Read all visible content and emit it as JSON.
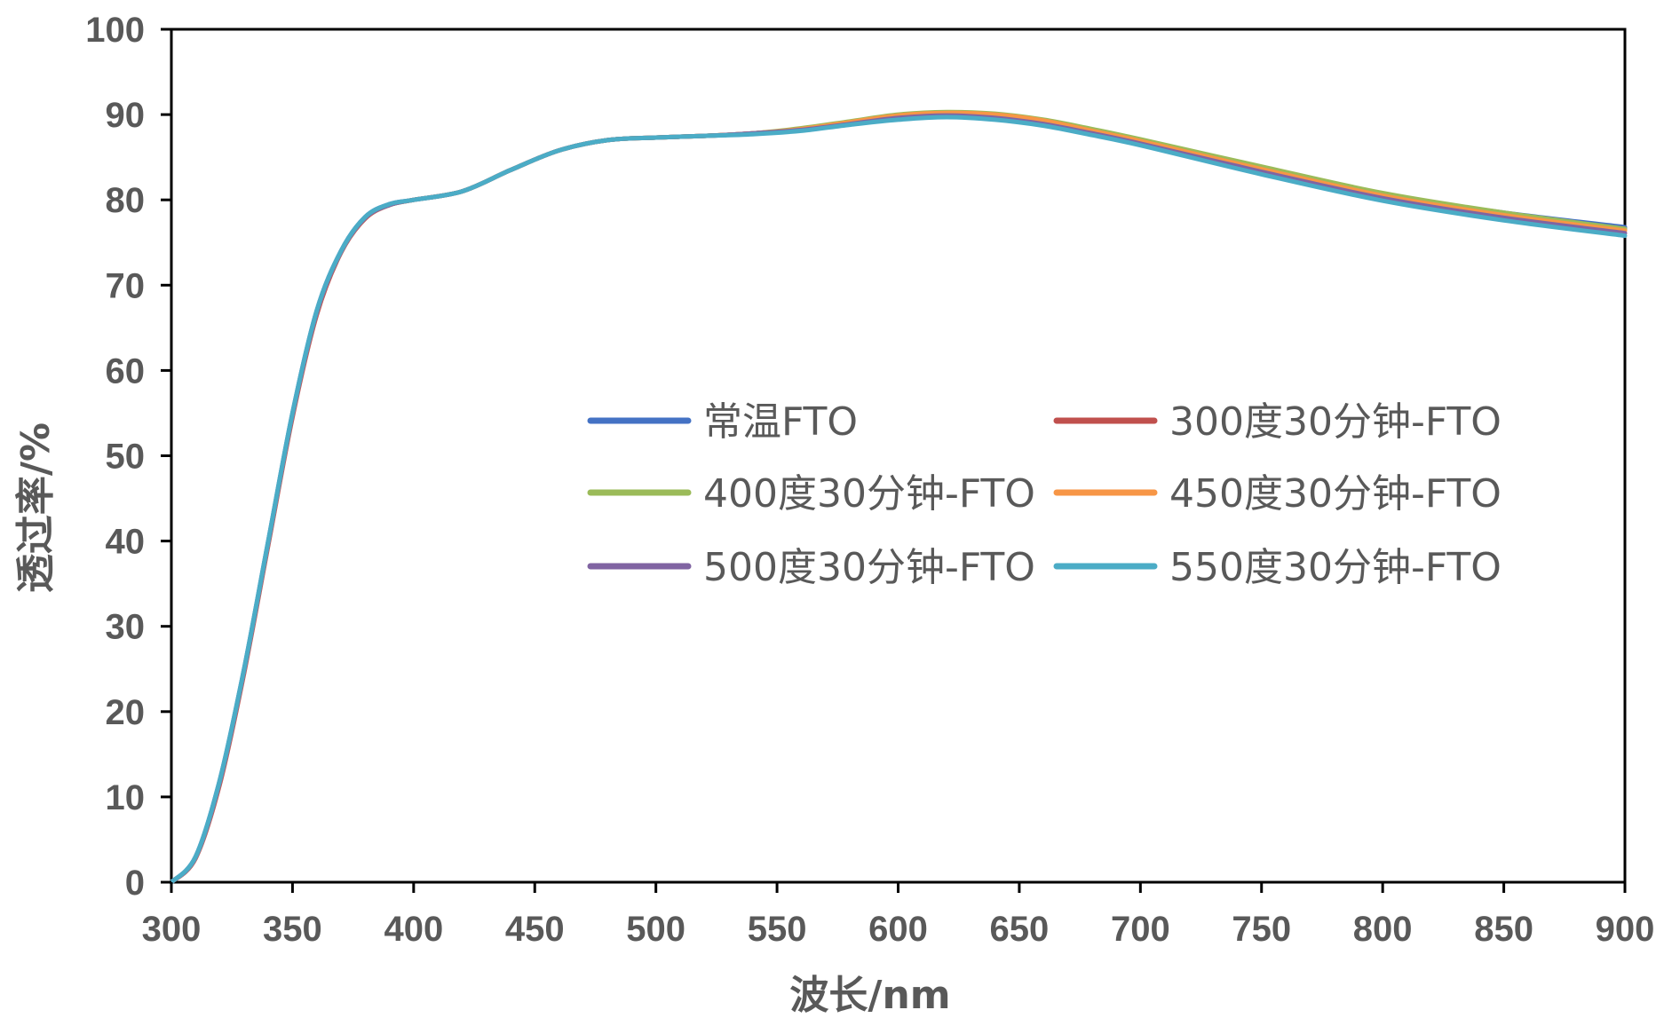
{
  "chart_data": {
    "type": "line",
    "xlabel": "波长/nm",
    "ylabel": "透过率/%",
    "xlim": [
      300,
      900
    ],
    "ylim": [
      0,
      100
    ],
    "xticks": [
      300,
      350,
      400,
      450,
      500,
      550,
      600,
      650,
      700,
      750,
      800,
      850,
      900
    ],
    "yticks": [
      0,
      10,
      20,
      30,
      40,
      50,
      60,
      70,
      80,
      90,
      100
    ],
    "grid": false,
    "legend_position": "center",
    "x": [
      300,
      310,
      320,
      330,
      340,
      350,
      360,
      370,
      380,
      390,
      400,
      420,
      440,
      460,
      480,
      500,
      520,
      540,
      560,
      580,
      600,
      620,
      640,
      660,
      680,
      700,
      750,
      800,
      850,
      900
    ],
    "series": [
      {
        "name": "常温FTO",
        "color": "#4472C4",
        "values": [
          0,
          3,
          12,
          25,
          40,
          55,
          67,
          74,
          78,
          79.5,
          80,
          81,
          83.5,
          85.8,
          87,
          87.3,
          87.5,
          87.8,
          88.2,
          88.9,
          89.6,
          90,
          89.8,
          89.1,
          88,
          86.9,
          83.7,
          80.6,
          78.5,
          76.8
        ]
      },
      {
        "name": "300度30分钟-FTO",
        "color": "#C0504D",
        "values": [
          0,
          2.8,
          11.5,
          24.5,
          39.5,
          54.5,
          66.5,
          73.8,
          77.8,
          79.4,
          80,
          81,
          83.5,
          85.8,
          87,
          87.3,
          87.5,
          87.8,
          88.3,
          89,
          89.8,
          90.2,
          90,
          89.3,
          88.2,
          87,
          83.8,
          80.7,
          78.4,
          76.6
        ]
      },
      {
        "name": "400度30分钟-FTO",
        "color": "#9BBB59",
        "values": [
          0,
          2.9,
          11.8,
          24.8,
          39.8,
          54.8,
          66.8,
          73.9,
          77.9,
          79.4,
          80,
          81,
          83.5,
          85.8,
          87,
          87.3,
          87.5,
          87.8,
          88.4,
          89.2,
          90,
          90.3,
          90.1,
          89.4,
          88.3,
          87.1,
          83.9,
          80.8,
          78.5,
          76.6
        ]
      },
      {
        "name": "450度30分钟-FTO",
        "color": "#F79646",
        "values": [
          0,
          2.9,
          11.8,
          24.8,
          39.8,
          54.8,
          66.8,
          73.9,
          77.9,
          79.4,
          80,
          81,
          83.5,
          85.8,
          87,
          87.3,
          87.5,
          87.8,
          88.3,
          89.1,
          89.9,
          90.2,
          90,
          89.3,
          88.1,
          86.9,
          83.6,
          80.5,
          78.2,
          76.4
        ]
      },
      {
        "name": "500度30分钟-FTO",
        "color": "#8064A2",
        "values": [
          0,
          2.9,
          11.8,
          24.8,
          39.8,
          54.8,
          66.8,
          73.9,
          77.9,
          79.4,
          80,
          81,
          83.5,
          85.8,
          87,
          87.3,
          87.5,
          87.8,
          88.2,
          88.9,
          89.6,
          89.9,
          89.6,
          88.9,
          87.8,
          86.6,
          83.3,
          80.2,
          77.9,
          76.1
        ]
      },
      {
        "name": "550度30分钟-FTO",
        "color": "#4BACC6",
        "values": [
          0,
          3,
          12,
          25,
          40,
          55,
          67,
          74,
          78,
          79.5,
          80,
          81,
          83.5,
          85.8,
          87,
          87.3,
          87.5,
          87.7,
          88.1,
          88.8,
          89.4,
          89.7,
          89.4,
          88.7,
          87.6,
          86.4,
          83,
          79.9,
          77.6,
          75.8
        ]
      }
    ]
  }
}
